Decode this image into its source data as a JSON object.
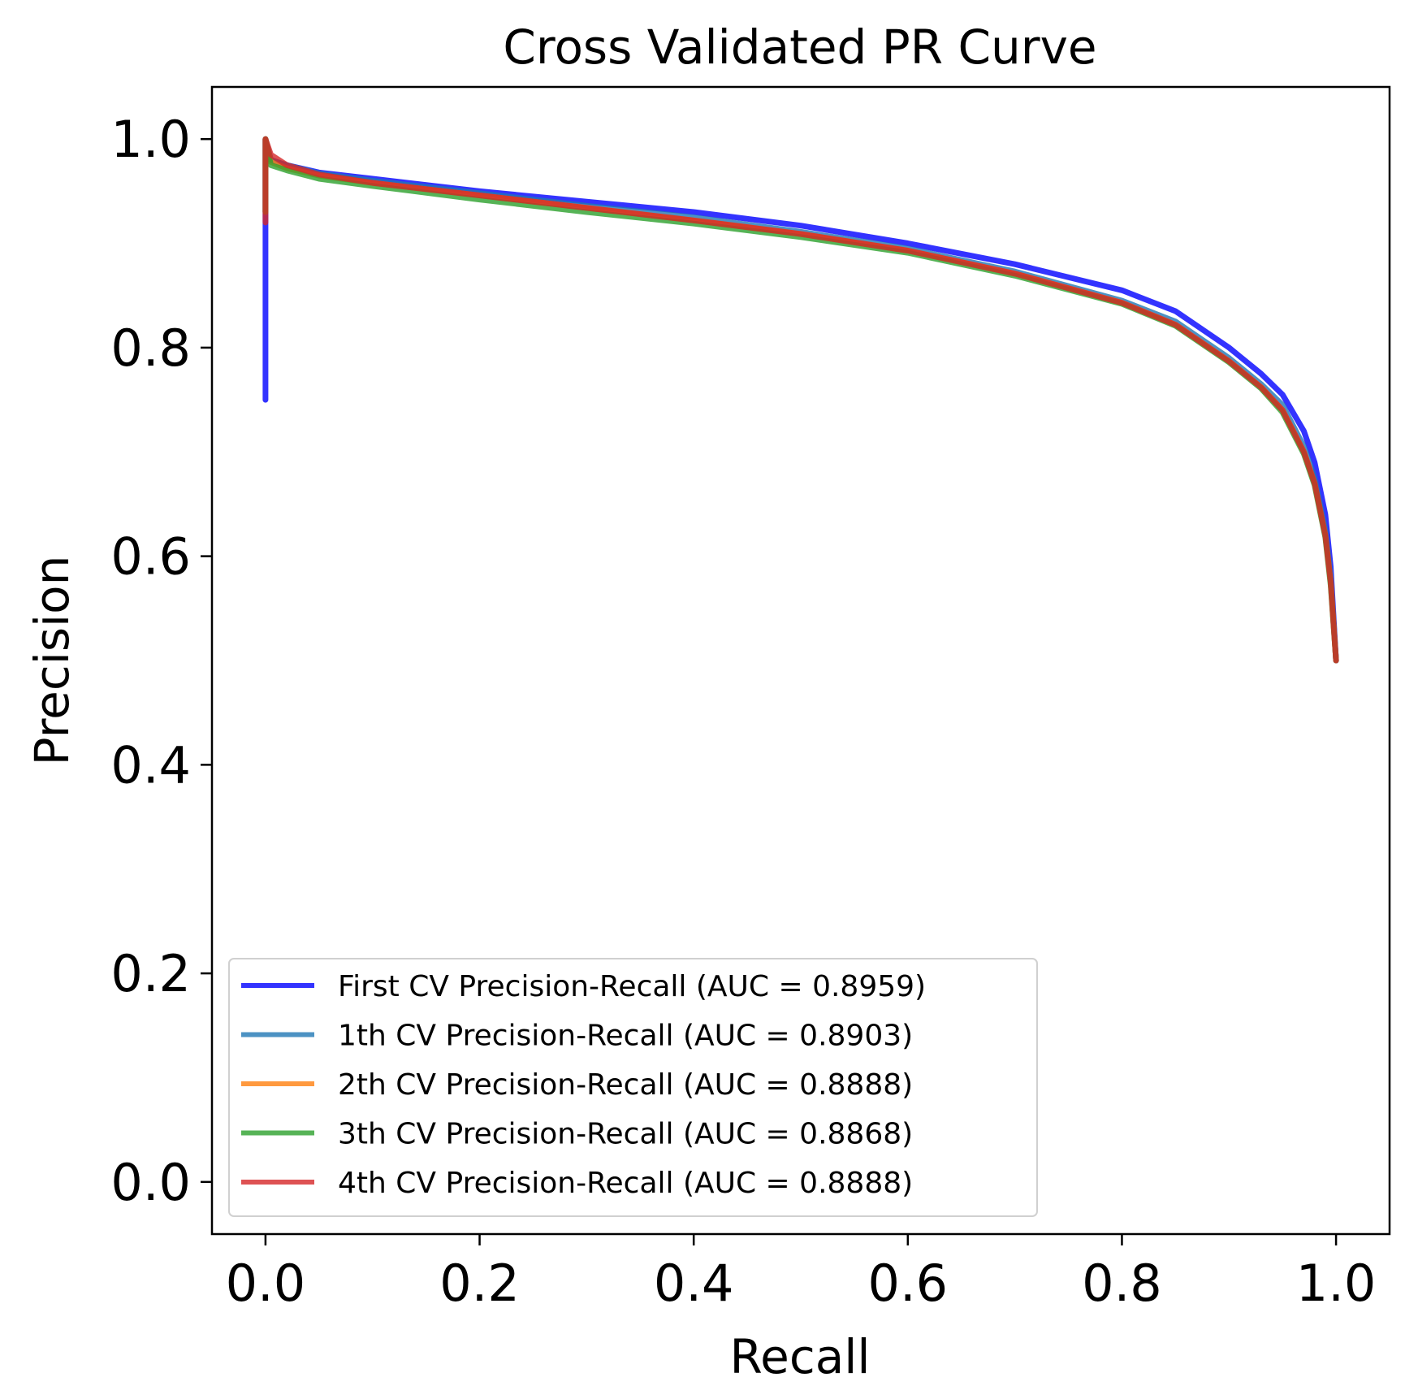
{
  "chart_data": {
    "type": "line",
    "title": "Cross Validated PR Curve",
    "xlabel": "Recall",
    "ylabel": "Precision",
    "xlim": [
      -0.05,
      1.05
    ],
    "ylim": [
      -0.05,
      1.05
    ],
    "xticks": [
      "0.0",
      "0.2",
      "0.4",
      "0.6",
      "0.8",
      "1.0"
    ],
    "yticks": [
      "0.0",
      "0.2",
      "0.4",
      "0.6",
      "0.8",
      "1.0"
    ],
    "legend_position": "lower-left",
    "grid": false,
    "series": [
      {
        "name": "First CV Precision-Recall (AUC = 0.8959)",
        "color": "#0000ff",
        "x": [
          0.0,
          0.0,
          0.0,
          0.005,
          0.02,
          0.05,
          0.1,
          0.2,
          0.3,
          0.4,
          0.5,
          0.6,
          0.7,
          0.8,
          0.85,
          0.9,
          0.93,
          0.95,
          0.97,
          0.98,
          0.99,
          0.995,
          1.0
        ],
        "y": [
          0.75,
          0.92,
          1.0,
          0.98,
          0.975,
          0.968,
          0.962,
          0.95,
          0.94,
          0.93,
          0.917,
          0.9,
          0.88,
          0.855,
          0.835,
          0.8,
          0.775,
          0.755,
          0.72,
          0.69,
          0.64,
          0.59,
          0.5
        ]
      },
      {
        "name": "1th CV Precision-Recall (AUC = 0.8903)",
        "color": "#1f77b4",
        "x": [
          0.0,
          0.0,
          0.005,
          0.02,
          0.05,
          0.1,
          0.2,
          0.3,
          0.4,
          0.5,
          0.6,
          0.7,
          0.8,
          0.85,
          0.9,
          0.93,
          0.95,
          0.97,
          0.98,
          0.99,
          0.995,
          1.0
        ],
        "y": [
          0.93,
          1.0,
          0.98,
          0.975,
          0.967,
          0.96,
          0.948,
          0.936,
          0.925,
          0.911,
          0.895,
          0.873,
          0.845,
          0.825,
          0.79,
          0.765,
          0.745,
          0.705,
          0.675,
          0.625,
          0.58,
          0.5
        ]
      },
      {
        "name": "2th CV Precision-Recall (AUC = 0.8888)",
        "color": "#ff7f0e",
        "x": [
          0.0,
          0.0,
          0.005,
          0.02,
          0.05,
          0.1,
          0.2,
          0.3,
          0.4,
          0.5,
          0.6,
          0.7,
          0.8,
          0.85,
          0.9,
          0.93,
          0.95,
          0.97,
          0.98,
          0.99,
          0.995,
          1.0
        ],
        "y": [
          0.93,
          1.0,
          0.978,
          0.972,
          0.965,
          0.958,
          0.946,
          0.934,
          0.922,
          0.909,
          0.893,
          0.871,
          0.843,
          0.822,
          0.787,
          0.762,
          0.74,
          0.7,
          0.67,
          0.62,
          0.575,
          0.5
        ]
      },
      {
        "name": "3th CV Precision-Recall (AUC = 0.8868)",
        "color": "#2ca02c",
        "x": [
          0.0,
          0.0,
          0.005,
          0.02,
          0.05,
          0.1,
          0.2,
          0.3,
          0.4,
          0.5,
          0.6,
          0.7,
          0.8,
          0.85,
          0.9,
          0.93,
          0.95,
          0.97,
          0.98,
          0.99,
          0.995,
          1.0
        ],
        "y": [
          0.93,
          1.0,
          0.975,
          0.97,
          0.962,
          0.955,
          0.942,
          0.93,
          0.919,
          0.906,
          0.891,
          0.869,
          0.842,
          0.821,
          0.786,
          0.761,
          0.738,
          0.698,
          0.668,
          0.618,
          0.572,
          0.5
        ]
      },
      {
        "name": "4th CV Precision-Recall (AUC = 0.8888)",
        "color": "#d62728",
        "x": [
          0.0,
          0.0,
          0.005,
          0.02,
          0.05,
          0.1,
          0.2,
          0.3,
          0.4,
          0.5,
          0.6,
          0.7,
          0.8,
          0.85,
          0.9,
          0.93,
          0.95,
          0.97,
          0.98,
          0.99,
          0.995,
          1.0
        ],
        "y": [
          0.92,
          1.0,
          0.985,
          0.975,
          0.966,
          0.958,
          0.946,
          0.934,
          0.922,
          0.909,
          0.893,
          0.871,
          0.843,
          0.822,
          0.787,
          0.762,
          0.74,
          0.7,
          0.67,
          0.62,
          0.575,
          0.5
        ]
      }
    ]
  }
}
